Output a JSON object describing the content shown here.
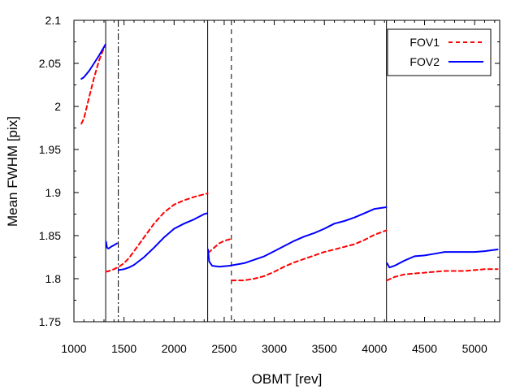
{
  "chart_data": {
    "type": "line",
    "title": "",
    "xlabel": "OBMT [rev]",
    "ylabel": "Mean FWHM [pix]",
    "xlim": [
      1000,
      5250
    ],
    "ylim": [
      1.75,
      2.1
    ],
    "xticks": [
      1000,
      1500,
      2000,
      2500,
      3000,
      3500,
      4000,
      4500,
      5000
    ],
    "xtick_labels": [
      "1000",
      "1500",
      "2000",
      "2500",
      "3000",
      "3500",
      "4000",
      "4500",
      "5000"
    ],
    "yticks": [
      1.75,
      1.8,
      1.85,
      1.9,
      1.95,
      2.0,
      2.05,
      2.1
    ],
    "ytick_labels": [
      "1.75",
      "1.8",
      "1.85",
      "1.9",
      "1.95",
      "2",
      "2.05",
      "2.1"
    ],
    "legend_position": "top-right",
    "vlines": [
      {
        "x": 1317,
        "style": "solid"
      },
      {
        "x": 1443,
        "style": "dashdot"
      },
      {
        "x": 2335,
        "style": "solid"
      },
      {
        "x": 2572,
        "style": "dashed"
      },
      {
        "x": 4120,
        "style": "solid"
      }
    ],
    "series": [
      {
        "name": "FOV1",
        "color": "#ff0000",
        "dash": "dashed",
        "segments": [
          [
            [
              1075,
              1.98
            ],
            [
              1100,
              1.986
            ],
            [
              1150,
              2.01
            ],
            [
              1200,
              2.033
            ],
            [
              1250,
              2.053
            ],
            [
              1300,
              2.068
            ],
            [
              1315,
              2.07
            ]
          ],
          [
            [
              1320,
              1.808
            ],
            [
              1350,
              1.809
            ],
            [
              1400,
              1.811
            ],
            [
              1450,
              1.814
            ],
            [
              1500,
              1.818
            ],
            [
              1550,
              1.824
            ],
            [
              1600,
              1.832
            ],
            [
              1700,
              1.848
            ],
            [
              1800,
              1.864
            ],
            [
              1900,
              1.877
            ],
            [
              2000,
              1.886
            ],
            [
              2100,
              1.891
            ],
            [
              2200,
              1.895
            ],
            [
              2300,
              1.898
            ],
            [
              2335,
              1.899
            ]
          ],
          [
            [
              2340,
              1.83
            ],
            [
              2400,
              1.836
            ],
            [
              2450,
              1.841
            ],
            [
              2500,
              1.844
            ],
            [
              2565,
              1.846
            ]
          ],
          [
            [
              2575,
              1.798
            ],
            [
              2700,
              1.798
            ],
            [
              2800,
              1.8
            ],
            [
              2900,
              1.803
            ],
            [
              3000,
              1.808
            ],
            [
              3100,
              1.814
            ],
            [
              3200,
              1.819
            ],
            [
              3300,
              1.823
            ],
            [
              3400,
              1.827
            ],
            [
              3500,
              1.831
            ],
            [
              3600,
              1.834
            ],
            [
              3700,
              1.837
            ],
            [
              3800,
              1.84
            ],
            [
              3900,
              1.845
            ],
            [
              4000,
              1.851
            ],
            [
              4118,
              1.856
            ]
          ],
          [
            [
              4125,
              1.798
            ],
            [
              4200,
              1.802
            ],
            [
              4300,
              1.805
            ],
            [
              4400,
              1.806
            ],
            [
              4500,
              1.807
            ],
            [
              4600,
              1.808
            ],
            [
              4700,
              1.809
            ],
            [
              4800,
              1.809
            ],
            [
              4900,
              1.809
            ],
            [
              5000,
              1.81
            ],
            [
              5100,
              1.811
            ],
            [
              5230,
              1.811
            ]
          ]
        ]
      },
      {
        "name": "FOV2",
        "color": "#0000ff",
        "dash": "solid",
        "segments": [
          [
            [
              1075,
              2.032
            ],
            [
              1100,
              2.034
            ],
            [
              1150,
              2.041
            ],
            [
              1200,
              2.05
            ],
            [
              1250,
              2.059
            ],
            [
              1300,
              2.069
            ],
            [
              1315,
              2.072
            ]
          ],
          [
            [
              1320,
              1.843
            ],
            [
              1330,
              1.836
            ],
            [
              1345,
              1.835
            ],
            [
              1370,
              1.837
            ],
            [
              1400,
              1.839
            ],
            [
              1430,
              1.841
            ]
          ],
          [
            [
              1445,
              1.81
            ],
            [
              1500,
              1.811
            ],
            [
              1550,
              1.813
            ],
            [
              1600,
              1.816
            ],
            [
              1700,
              1.825
            ],
            [
              1800,
              1.836
            ],
            [
              1900,
              1.848
            ],
            [
              2000,
              1.858
            ],
            [
              2100,
              1.864
            ],
            [
              2200,
              1.869
            ],
            [
              2300,
              1.875
            ],
            [
              2330,
              1.876
            ]
          ],
          [
            [
              2338,
              1.834
            ],
            [
              2350,
              1.82
            ],
            [
              2380,
              1.815
            ],
            [
              2450,
              1.814
            ],
            [
              2550,
              1.815
            ],
            [
              2700,
              1.818
            ],
            [
              2800,
              1.822
            ],
            [
              2900,
              1.826
            ],
            [
              3000,
              1.832
            ],
            [
              3100,
              1.838
            ],
            [
              3200,
              1.844
            ],
            [
              3300,
              1.849
            ],
            [
              3400,
              1.853
            ],
            [
              3500,
              1.858
            ],
            [
              3550,
              1.861
            ],
            [
              3600,
              1.864
            ],
            [
              3700,
              1.867
            ],
            [
              3800,
              1.871
            ],
            [
              3900,
              1.876
            ],
            [
              4000,
              1.881
            ],
            [
              4118,
              1.883
            ]
          ],
          [
            [
              4125,
              1.818
            ],
            [
              4150,
              1.813
            ],
            [
              4200,
              1.815
            ],
            [
              4300,
              1.821
            ],
            [
              4400,
              1.826
            ],
            [
              4500,
              1.827
            ],
            [
              4600,
              1.829
            ],
            [
              4700,
              1.831
            ],
            [
              4800,
              1.831
            ],
            [
              4900,
              1.831
            ],
            [
              5000,
              1.831
            ],
            [
              5100,
              1.832
            ],
            [
              5230,
              1.834
            ]
          ]
        ]
      }
    ]
  }
}
